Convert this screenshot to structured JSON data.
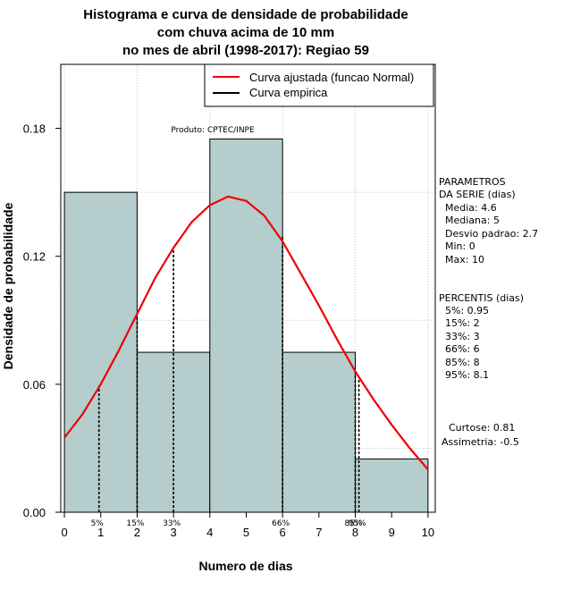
{
  "chart_data": {
    "type": "bar",
    "title_lines": [
      "Histograma e curva de densidade de probabilidade",
      "com chuva acima de 10 mm",
      "no mes de abril (1998-2017): Regiao 59"
    ],
    "xlabel": "Numero de dias",
    "ylabel": "Densidade de probabilidade",
    "xlim": [
      -0.1,
      10.2
    ],
    "ylim": [
      0,
      0.21
    ],
    "x_ticks": [
      "0",
      "1",
      "2",
      "3",
      "4",
      "5",
      "6",
      "7",
      "8",
      "9",
      "10"
    ],
    "y_ticks": [
      "0.00",
      "0.06",
      "0.12",
      "0.18"
    ],
    "bins": [
      {
        "x0": 0,
        "x1": 2,
        "value": 0.15
      },
      {
        "x0": 2,
        "x1": 4,
        "value": 0.075
      },
      {
        "x0": 4,
        "x1": 6,
        "value": 0.175
      },
      {
        "x0": 6,
        "x1": 8,
        "value": 0.075
      },
      {
        "x0": 8,
        "x1": 10,
        "value": 0.025
      }
    ],
    "bar_color": "#b5cdcd",
    "curve": {
      "name": "Curva ajustada (funcao Normal)",
      "color": "#ee0000",
      "x": [
        0,
        0.5,
        1,
        1.5,
        2,
        2.5,
        3,
        3.5,
        4,
        4.5,
        5,
        5.5,
        6,
        6.5,
        7,
        7.5,
        8,
        8.5,
        9,
        9.5,
        10
      ],
      "y": [
        0.035,
        0.046,
        0.06,
        0.076,
        0.093,
        0.11,
        0.124,
        0.136,
        0.144,
        0.148,
        0.146,
        0.139,
        0.127,
        0.112,
        0.097,
        0.081,
        0.066,
        0.053,
        0.041,
        0.03,
        0.02
      ]
    },
    "empirical": {
      "name": "Curva empirica",
      "color": "#000000"
    },
    "percentile_lines": [
      {
        "label": "5%",
        "x": 0.95
      },
      {
        "label": "15%",
        "x": 2
      },
      {
        "label": "33%",
        "x": 3
      },
      {
        "label": "66%",
        "x": 6
      },
      {
        "label": "85%",
        "x": 8
      },
      {
        "label": "95%",
        "x": 8.1
      }
    ],
    "annotation": "Produto: CPTEC/INPE",
    "legend_position": "top-right",
    "grid": true
  },
  "side_panel": {
    "params_title": [
      "PARAMETROS",
      "DA SERIE (dias)"
    ],
    "params": [
      "Media: 4.6",
      "Mediana: 5",
      "Desvio padrao: 2.7",
      "Min: 0",
      "Max: 10"
    ],
    "percentis_title": "PERCENTIS (dias)",
    "percentis": [
      "5%: 0.95",
      "15%: 2",
      "33%: 3",
      "66%: 6",
      "85%: 8",
      "95%: 8.1"
    ],
    "curtose": "Curtose: 0.81",
    "assimetria": "Assimetria: -0.5"
  }
}
